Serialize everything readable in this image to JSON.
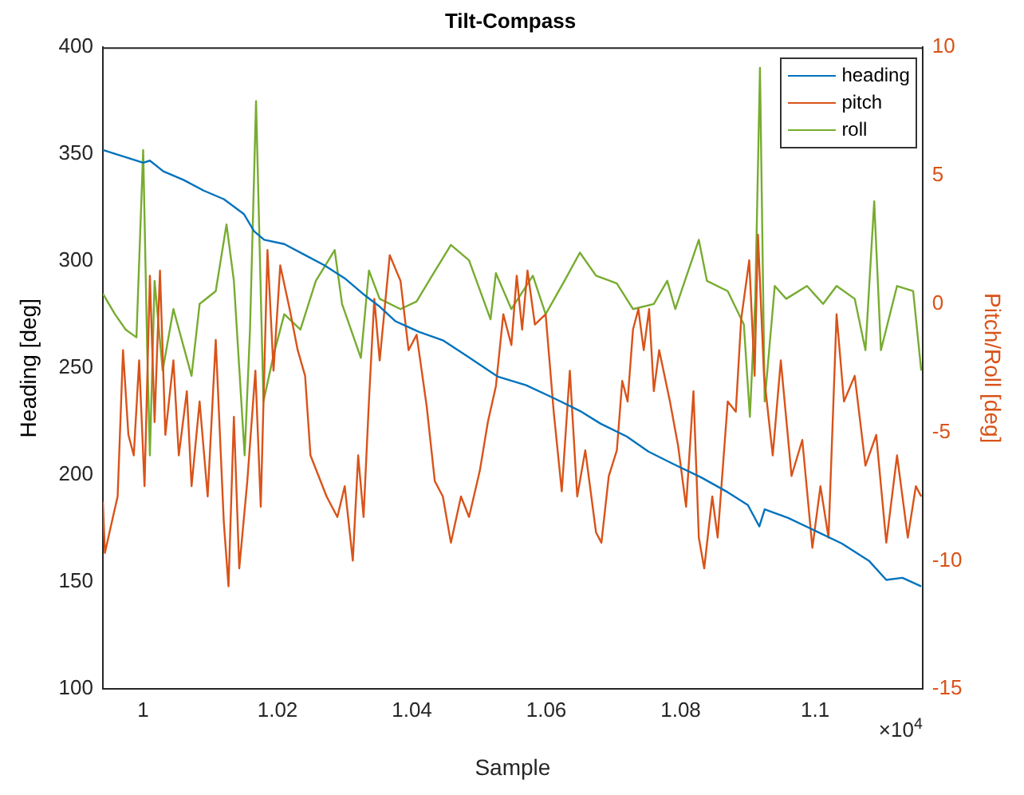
{
  "chart_data": {
    "type": "line",
    "title": "Tilt-Compass",
    "xlabel": "Sample",
    "ylabel": "Heading [deg]",
    "y2label": "Pitch/Roll [deg]",
    "annotations": [
      "×10$^{4}$"
    ],
    "xlim": [
      0.994,
      1.116
    ],
    "xticks": [
      1,
      1.02,
      1.04,
      1.06,
      1.08,
      1.1
    ],
    "ylim": [
      100,
      400
    ],
    "yticks": [
      100,
      150,
      200,
      250,
      300,
      350,
      400
    ],
    "y2lim": [
      -15,
      10
    ],
    "y2ticks": [
      -15,
      -10,
      -5,
      0,
      5,
      10
    ],
    "grid": false,
    "legend": "top right",
    "series": [
      {
        "name": "heading",
        "color": "#0072bd",
        "x": [
          0.994,
          0.997,
          1.0,
          1.001,
          1.003,
          1.006,
          1.009,
          1.012,
          1.015,
          1.0165,
          1.018,
          1.021,
          1.024,
          1.027,
          1.03,
          1.033,
          1.0351,
          1.0375,
          1.041,
          1.0446,
          1.048,
          1.0528,
          1.057,
          1.0611,
          1.065,
          1.0681,
          1.072,
          1.0752,
          1.079,
          1.083,
          1.087,
          1.09,
          1.0917,
          1.0925,
          1.096,
          1.1,
          1.104,
          1.108,
          1.1106,
          1.113,
          1.1158
        ],
        "values": [
          352,
          349,
          346,
          347,
          342,
          338,
          333,
          329,
          322,
          314,
          310,
          308,
          303,
          298,
          292,
          284,
          279,
          272,
          267,
          263,
          256,
          246,
          242,
          236,
          230,
          224,
          218,
          211,
          205,
          199,
          192,
          186,
          176,
          184,
          180,
          174,
          168,
          160,
          151,
          152,
          148
        ]
      },
      {
        "name": "pitch",
        "color": "#d95319",
        "axis": "y2",
        "x": [
          0.994,
          0.9943,
          0.9955,
          0.9962,
          0.997,
          0.9978,
          0.9986,
          0.9994,
          1.0002,
          1.001,
          1.0017,
          1.0025,
          1.0033,
          1.0045,
          1.0053,
          1.0065,
          1.0072,
          1.0084,
          1.0096,
          1.0108,
          1.012,
          1.0127,
          1.0135,
          1.0143,
          1.0155,
          1.0167,
          1.0175,
          1.0185,
          1.0194,
          1.0204,
          1.0218,
          1.023,
          1.0241,
          1.0249,
          1.0273,
          1.0289,
          1.03,
          1.0312,
          1.032,
          1.0328,
          1.0336,
          1.0344,
          1.0352,
          1.0367,
          1.0383,
          1.0395,
          1.0407,
          1.0422,
          1.0434,
          1.0446,
          1.0458,
          1.0473,
          1.0485,
          1.0501,
          1.0513,
          1.0525,
          1.0536,
          1.0548,
          1.0556,
          1.0564,
          1.0572,
          1.0583,
          1.0599,
          1.0611,
          1.0623,
          1.0635,
          1.0646,
          1.0658,
          1.0674,
          1.0682,
          1.0693,
          1.0705,
          1.0713,
          1.0721,
          1.0729,
          1.0737,
          1.0745,
          1.0753,
          1.076,
          1.0768,
          1.0784,
          1.0796,
          1.0808,
          1.0819,
          1.0827,
          1.0835,
          1.0847,
          1.0855,
          1.087,
          1.0882,
          1.089,
          1.0902,
          1.091,
          1.0915,
          1.0924,
          1.0937,
          1.0949,
          1.0965,
          1.0981,
          1.0996,
          1.1008,
          1.102,
          1.1032,
          1.1043,
          1.1059,
          1.1075,
          1.1091,
          1.1106,
          1.1122,
          1.1138,
          1.115,
          1.1158
        ],
        "values": [
          -7.7,
          -9.7,
          -8.3,
          -7.5,
          -1.8,
          -5.1,
          -5.9,
          -2.2,
          -7.1,
          1.1,
          -4.6,
          1.3,
          -5.1,
          -2.2,
          -5.9,
          -3.4,
          -7.1,
          -3.8,
          -7.5,
          -1.4,
          -8.5,
          -11,
          -4.4,
          -10.3,
          -6.9,
          -2.6,
          -7.9,
          2.1,
          -2.6,
          1.5,
          -0.2,
          -1.8,
          -2.8,
          -5.9,
          -7.5,
          -8.3,
          -7.1,
          -10,
          -5.9,
          -8.3,
          -3.8,
          0.2,
          -2.2,
          1.9,
          0.9,
          -1.8,
          -1.2,
          -4,
          -6.9,
          -7.5,
          -9.3,
          -7.5,
          -8.3,
          -6.5,
          -4.6,
          -3.2,
          -0.4,
          -1.6,
          1.1,
          -1,
          1.3,
          -0.8,
          -0.4,
          -4.2,
          -7.3,
          -2.6,
          -7.5,
          -5.7,
          -8.9,
          -9.3,
          -6.7,
          -5.7,
          -3,
          -3.8,
          -1,
          -0.2,
          -1.8,
          -0.2,
          -3.4,
          -1.8,
          -3.8,
          -5.5,
          -7.9,
          -3.4,
          -9.1,
          -10.3,
          -7.5,
          -9.1,
          -3.8,
          -4.2,
          -0.6,
          1.7,
          -2.8,
          2.7,
          -2.8,
          -5.9,
          -2.2,
          -6.7,
          -5.3,
          -9.5,
          -7.1,
          -9.1,
          -0.4,
          -3.8,
          -2.8,
          -6.3,
          -5.1,
          -9.3,
          -5.9,
          -9.1,
          -7.1,
          -7.5
        ]
      },
      {
        "name": "roll",
        "color": "#77ac30",
        "axis": "y2",
        "x": [
          0.994,
          0.9958,
          0.9974,
          0.999,
          1.0,
          1.0006,
          1.001,
          1.0017,
          1.0029,
          1.0045,
          1.0072,
          1.0084,
          1.0108,
          1.0124,
          1.0135,
          1.0151,
          1.0159,
          1.0168,
          1.0179,
          1.0194,
          1.021,
          1.0234,
          1.0257,
          1.0285,
          1.0296,
          1.0324,
          1.0336,
          1.0352,
          1.0383,
          1.0407,
          1.043,
          1.0458,
          1.0485,
          1.0517,
          1.0525,
          1.0548,
          1.058,
          1.0599,
          1.0627,
          1.065,
          1.0674,
          1.0705,
          1.0729,
          1.076,
          1.078,
          1.0792,
          1.0827,
          1.0839,
          1.087,
          1.0894,
          1.0903,
          1.0911,
          1.0918,
          1.0925,
          1.094,
          1.0957,
          1.0988,
          1.1012,
          1.1032,
          1.1059,
          1.1075,
          1.1088,
          1.1098,
          1.1122,
          1.1146,
          1.1158
        ],
        "values": [
          0.4,
          -0.4,
          -1,
          -1.3,
          6,
          -1.8,
          -5.9,
          0.9,
          -2.6,
          -0.2,
          -2.8,
          0,
          0.5,
          3.1,
          0.9,
          -5.9,
          -1,
          7.9,
          -3.8,
          -2,
          -0.4,
          -1,
          0.9,
          2.1,
          0,
          -2.1,
          1.3,
          0.2,
          -0.2,
          0.1,
          1.1,
          2.3,
          1.7,
          -0.6,
          1.2,
          -0.2,
          1.1,
          -0.4,
          0.9,
          2,
          1.1,
          0.8,
          -0.2,
          0,
          0.9,
          -0.2,
          2.5,
          0.9,
          0.5,
          -0.8,
          -4.4,
          0.2,
          9.2,
          -3.8,
          0.7,
          0.2,
          0.7,
          0,
          0.7,
          0.2,
          -1.8,
          4,
          -1.8,
          0.7,
          0.5,
          -2.6
        ]
      }
    ]
  }
}
